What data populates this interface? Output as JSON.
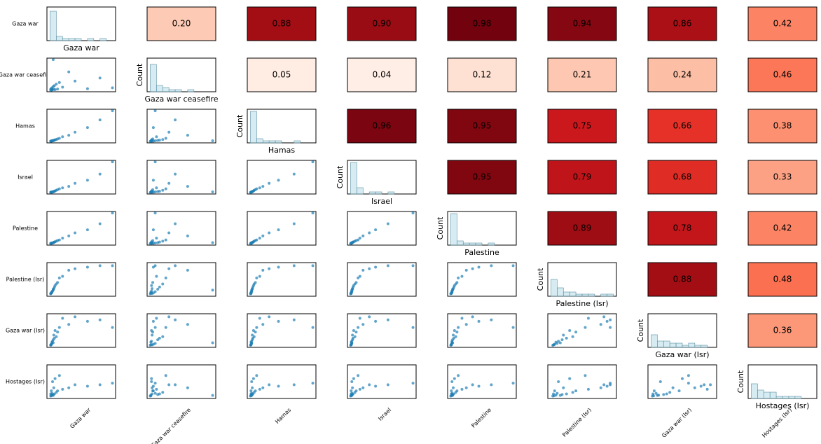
{
  "chart_data": {
    "type": "pairgrid",
    "variables": [
      "Gaza war",
      "Gaza war ceasefire",
      "Hamas",
      "Israel",
      "Palestine",
      "Palestine (Isr)",
      "Gaza war (Isr)",
      "Hostages (Isr)"
    ],
    "count_label": "Count",
    "colormap": "Reds",
    "color_limits": [
      0,
      1
    ],
    "point_color": "#1f7fb4",
    "hist_color": "#add8e6",
    "lim": [
      -5,
      105
    ],
    "correlations": [
      {
        "values": [
          0.2,
          0.88,
          0.9,
          0.98,
          0.94,
          0.86,
          0.42
        ],
        "value_labels": [
          "0.20",
          "0.88",
          "0.90",
          "0.98",
          "0.94",
          "0.86",
          "0.42"
        ]
      },
      {
        "values": [
          0.05,
          0.04,
          0.12,
          0.21,
          0.24,
          0.46
        ],
        "value_labels": [
          "0.05",
          "0.04",
          "0.12",
          "0.21",
          "0.24",
          "0.46"
        ]
      },
      {
        "values": [
          0.96,
          0.95,
          0.75,
          0.66,
          0.38
        ],
        "value_labels": [
          "0.96",
          "0.95",
          "0.75",
          "0.66",
          "0.38"
        ]
      },
      {
        "values": [
          0.95,
          0.79,
          0.68,
          0.33
        ],
        "value_labels": [
          "0.95",
          "0.79",
          "0.68",
          "0.33"
        ]
      },
      {
        "values": [
          0.89,
          0.78,
          0.42
        ],
        "value_labels": [
          "0.89",
          "0.78",
          "0.42"
        ]
      },
      {
        "values": [
          0.88,
          0.48
        ],
        "value_labels": [
          "0.88",
          "0.48"
        ]
      },
      {
        "values": [
          0.36
        ],
        "value_labels": [
          "0.36"
        ]
      }
    ],
    "observations": [
      [
        100,
        8,
        100,
        100,
        100,
        95,
        60,
        45
      ],
      [
        60,
        5,
        45,
        40,
        45,
        90,
        80,
        35
      ],
      [
        40,
        30,
        30,
        30,
        35,
        85,
        95,
        40
      ],
      [
        30,
        60,
        20,
        20,
        25,
        80,
        70,
        30
      ],
      [
        20,
        10,
        15,
        15,
        18,
        60,
        90,
        25
      ],
      [
        15,
        25,
        10,
        12,
        12,
        55,
        60,
        70
      ],
      [
        12,
        4,
        8,
        9,
        10,
        40,
        45,
        20
      ],
      [
        10,
        20,
        6,
        7,
        8,
        35,
        30,
        15
      ],
      [
        8,
        2,
        5,
        5,
        6,
        30,
        50,
        60
      ],
      [
        7,
        15,
        4,
        4,
        5,
        25,
        25,
        10
      ],
      [
        6,
        3,
        3,
        3,
        4,
        20,
        35,
        30
      ],
      [
        5,
        12,
        3,
        3,
        3,
        18,
        20,
        8
      ],
      [
        5,
        100,
        2,
        2,
        3,
        15,
        10,
        5
      ],
      [
        4,
        2,
        2,
        2,
        2,
        12,
        15,
        50
      ],
      [
        3,
        8,
        2,
        2,
        2,
        10,
        8,
        12
      ],
      [
        3,
        1,
        1,
        1,
        2,
        8,
        12,
        6
      ],
      [
        2,
        5,
        1,
        1,
        1,
        6,
        5,
        20
      ],
      [
        2,
        1,
        1,
        1,
        1,
        5,
        4,
        4
      ],
      [
        1,
        3,
        1,
        1,
        1,
        4,
        3,
        10
      ],
      [
        1,
        0,
        0,
        0,
        0,
        3,
        2,
        3
      ],
      [
        80,
        40,
        70,
        60,
        65,
        95,
        85,
        40
      ]
    ],
    "hist_bins": [
      0,
      10,
      20,
      30,
      40,
      50,
      60,
      70,
      80,
      90,
      100
    ],
    "hist_ylim": [
      0,
      16
    ],
    "histograms": [
      [
        14,
        2,
        1,
        1,
        1,
        0,
        1,
        0,
        1,
        0
      ],
      [
        13,
        3,
        2,
        1,
        1,
        0,
        1,
        0,
        0,
        0
      ],
      [
        15,
        2,
        1,
        1,
        1,
        0,
        0,
        1,
        0,
        0
      ],
      [
        15,
        3,
        0,
        1,
        1,
        0,
        1,
        0,
        0,
        0
      ],
      [
        15,
        2,
        1,
        1,
        1,
        0,
        1,
        0,
        0,
        0
      ],
      [
        8,
        4,
        2,
        2,
        1,
        1,
        1,
        0,
        1,
        1
      ],
      [
        6,
        3,
        3,
        2,
        2,
        1,
        2,
        1,
        1,
        0
      ],
      [
        7,
        4,
        3,
        3,
        1,
        1,
        1,
        1,
        0,
        0
      ]
    ]
  }
}
